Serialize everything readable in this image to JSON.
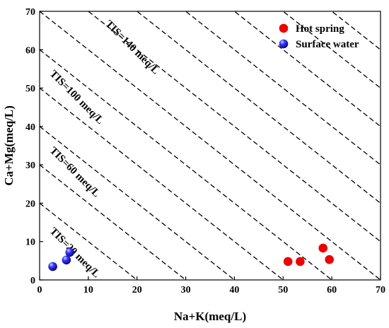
{
  "chart_data": {
    "type": "scatter",
    "xlabel": "Na+K(meq/L)",
    "ylabel": "Ca+Mg(meq/L)",
    "xlim": [
      0,
      70
    ],
    "ylim": [
      0,
      70
    ],
    "xticks": [
      0,
      10,
      20,
      30,
      40,
      50,
      60,
      70
    ],
    "yticks": [
      0,
      10,
      20,
      30,
      40,
      50,
      60,
      70
    ],
    "grid": false,
    "legend_position": "top-right",
    "series": [
      {
        "name": "Hot spring",
        "color": "#ee0000",
        "marker": "circle",
        "points": [
          [
            51.0,
            4.8
          ],
          [
            53.5,
            4.8
          ],
          [
            58.2,
            8.3
          ],
          [
            59.5,
            5.3
          ]
        ]
      },
      {
        "name": "Surface water",
        "color": "#1a1aff",
        "marker": "sphere",
        "points": [
          [
            2.7,
            3.5
          ],
          [
            5.5,
            5.2
          ],
          [
            6.2,
            7.2
          ]
        ]
      }
    ],
    "tis_lines": {
      "style": "dashed",
      "totals": [
        20,
        30,
        40,
        50,
        60,
        70,
        80,
        90,
        100,
        110,
        120,
        130,
        140
      ]
    },
    "annotations": [
      {
        "text": "TIS=20 meq/L",
        "x": 2.0,
        "y": 12.6,
        "angle": 45
      },
      {
        "text": "TIS=60 meq/L",
        "x": 2.0,
        "y": 33.6,
        "angle": 45
      },
      {
        "text": "TIS=100 meq/L",
        "x": 2.0,
        "y": 53.6,
        "angle": 45
      },
      {
        "text": "TIS=140 meq/L",
        "x": 13.4,
        "y": 66.6,
        "angle": 45
      }
    ]
  }
}
